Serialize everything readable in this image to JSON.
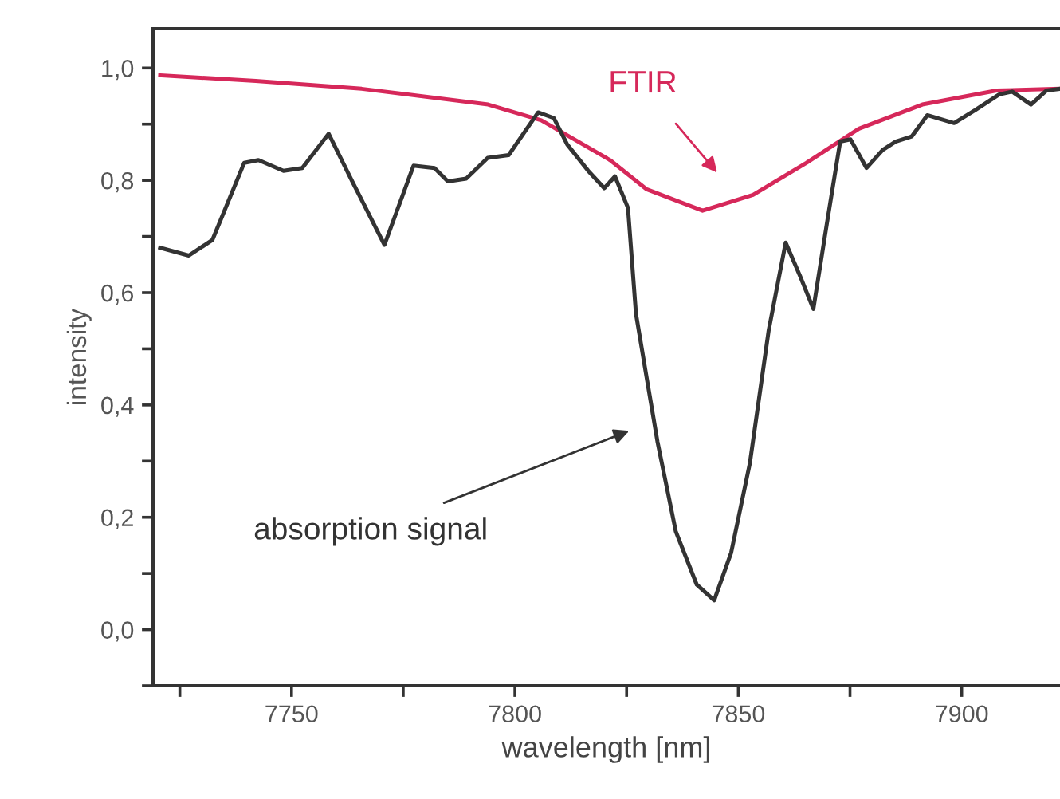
{
  "chart_data": {
    "type": "line",
    "xlabel": "wavelength [nm]",
    "ylabel": "intensity",
    "xlim": [
      7719,
      7922
    ],
    "ylim": [
      -0.1,
      1.07
    ],
    "xticks": [
      {
        "value": 7725,
        "label": null
      },
      7750,
      {
        "value": 7775,
        "label": null
      },
      7800,
      {
        "value": 7825,
        "label": null
      },
      7850,
      {
        "value": 7875,
        "label": null
      },
      7900
    ],
    "yticks": [
      {
        "value": -0.1,
        "label": null
      },
      {
        "value": 0.0,
        "label": "0,0"
      },
      {
        "value": 0.1,
        "label": null
      },
      {
        "value": 0.2,
        "label": "0,2"
      },
      {
        "value": 0.3,
        "label": null
      },
      {
        "value": 0.4,
        "label": "0,4"
      },
      {
        "value": 0.5,
        "label": null
      },
      {
        "value": 0.6,
        "label": "0,6"
      },
      {
        "value": 0.7,
        "label": null
      },
      {
        "value": 0.8,
        "label": "0,8"
      },
      {
        "value": 0.9,
        "label": null
      },
      {
        "value": 1.0,
        "label": "1,0"
      }
    ],
    "grid": false,
    "legend": false,
    "series": [
      {
        "color": "#d6285a",
        "x": [
          7720.6,
          7742,
          7765.7,
          7794,
          7805.9,
          7821.3,
          7829.5,
          7842,
          7853.3,
          7865.2,
          7877,
          7891.2,
          7907.8,
          7922
        ],
        "values": [
          0.987,
          0.977,
          0.963,
          0.935,
          0.907,
          0.836,
          0.784,
          0.746,
          0.774,
          0.831,
          0.892,
          0.935,
          0.96,
          0.963
        ]
      },
      {
        "color": "#333333",
        "x": [
          7720.6,
          7727,
          7732.3,
          7739.4,
          7742.6,
          7748.2,
          7752.4,
          7758.3,
          7763.6,
          7770.8,
          7777.3,
          7782,
          7785,
          7789.1,
          7793.9,
          7798.6,
          7805.2,
          7808.7,
          7811.7,
          7816.4,
          7820,
          7822.4,
          7825.3,
          7827.1,
          7829.5,
          7831.9,
          7836,
          7840.7,
          7844.6,
          7848.4,
          7852.6,
          7856.8,
          7860.6,
          7863.9,
          7866.8,
          7869.8,
          7872.8,
          7875.1,
          7878.7,
          7882.3,
          7885.2,
          7888.8,
          7892.3,
          7898.3,
          7903,
          7908.4,
          7911.3,
          7915.5,
          7919,
          7922
        ],
        "values": [
          0.68,
          0.666,
          0.694,
          0.831,
          0.836,
          0.817,
          0.822,
          0.883,
          0.798,
          0.685,
          0.826,
          0.822,
          0.798,
          0.803,
          0.84,
          0.845,
          0.921,
          0.911,
          0.864,
          0.817,
          0.786,
          0.807,
          0.751,
          0.562,
          0.448,
          0.335,
          0.175,
          0.08,
          0.052,
          0.137,
          0.297,
          0.533,
          0.689,
          0.628,
          0.571,
          0.722,
          0.869,
          0.873,
          0.822,
          0.854,
          0.869,
          0.878,
          0.916,
          0.902,
          0.925,
          0.953,
          0.958,
          0.935,
          0.96,
          0.963
        ]
      }
    ],
    "annotations": [
      "FTIR",
      "absorption signal"
    ]
  }
}
